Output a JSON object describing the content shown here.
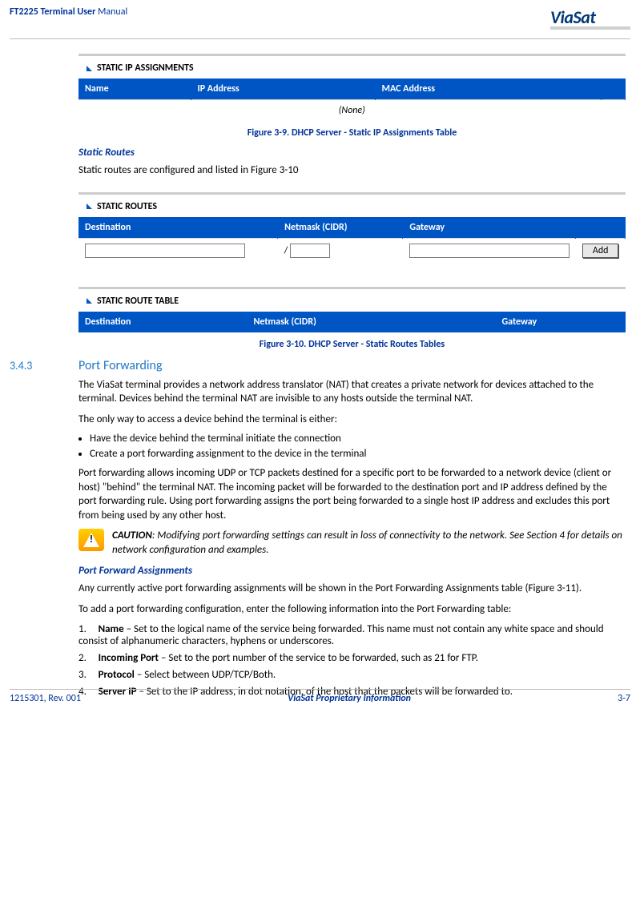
{
  "header": {
    "product": "FT2225 Terminal User",
    "doctype": "Manual",
    "logo_text": "ViaSat"
  },
  "static_ip": {
    "section_title": "STATIC IP ASSIGNMENTS",
    "col_name": "Name",
    "col_ip": "IP Address",
    "col_mac": "MAC Address",
    "none_row": "(None)",
    "caption": "Figure 3-9. DHCP Server - Static IP Assignments Table"
  },
  "static_routes": {
    "heading": "Static Routes",
    "intro": "Static routes are configured and listed in Figure 3-10",
    "section_title": "STATIC ROUTES",
    "col_dest": "Destination",
    "col_cidr": "Netmask (CIDR)",
    "col_gw": "Gateway",
    "slash": "/",
    "add_label": "Add",
    "table2_title": "STATIC ROUTE TABLE",
    "col_dest2": "Destination",
    "col_cidr2": "Netmask (CIDR)",
    "col_gw2": "Gateway",
    "caption": "Figure 3-10. DHCP Server - Static Routes Tables"
  },
  "port_fwd": {
    "num": "3.4.3",
    "title": "Port Forwarding",
    "p1": "The ViaSat terminal provides a network address translator (NAT) that creates a private network for devices attached to the terminal. Devices behind the terminal NAT are invisible to any hosts outside the terminal NAT.",
    "p2": "The only way to access a device behind the terminal is either:",
    "b1": "Have the device behind the terminal initiate the connection",
    "b2": "Create a port forwarding assignment to the device in the terminal",
    "p3": "Port forwarding allows incoming UDP or TCP packets destined for a specific port to be forwarded to a network device (client or host) \"behind\" the terminal NAT. The incoming packet will be forwarded to the destination port and IP address defined by the port forwarding rule. Using port forwarding assigns the port being forwarded to a single host IP address and excludes this port from being used by any other host.",
    "caution_label": "CAUTION",
    "caution_text": ": Modifying port forwarding settings can result in loss of connectivity to the network. See Section 4 for details on network configuration and examples.",
    "assign_heading": "Port Forward Assignments",
    "p4": "Any currently active port forwarding assignments will be shown in the Port Forwarding Assignments table (Figure 3-11).",
    "p5": "To add a port forwarding configuration, enter the following information into the Port Forwarding table:",
    "s1_num": "1.",
    "s1_label": "Name",
    "s1_text": " – Set to the logical name of the service being forwarded.  This name must not contain any white space and should consist of alphanumeric characters, hyphens or underscores.",
    "s2_num": "2.",
    "s2_label": "Incoming Port",
    "s2_text": " – Set to the port number of the service to be forwarded, such as 21 for FTP.",
    "s3_num": "3.",
    "s3_label": "Protocol",
    "s3_text": " – Select between UDP/TCP/Both.",
    "s4_num": "4.",
    "s4_label": "Server IP",
    "s4_text": " – Set to the IP address, in dot notation, of the host that the packets will be forwarded to."
  },
  "footer": {
    "left": "1215301, Rev.  001",
    "center": "ViaSat Proprietary Information",
    "right": "3-7"
  }
}
